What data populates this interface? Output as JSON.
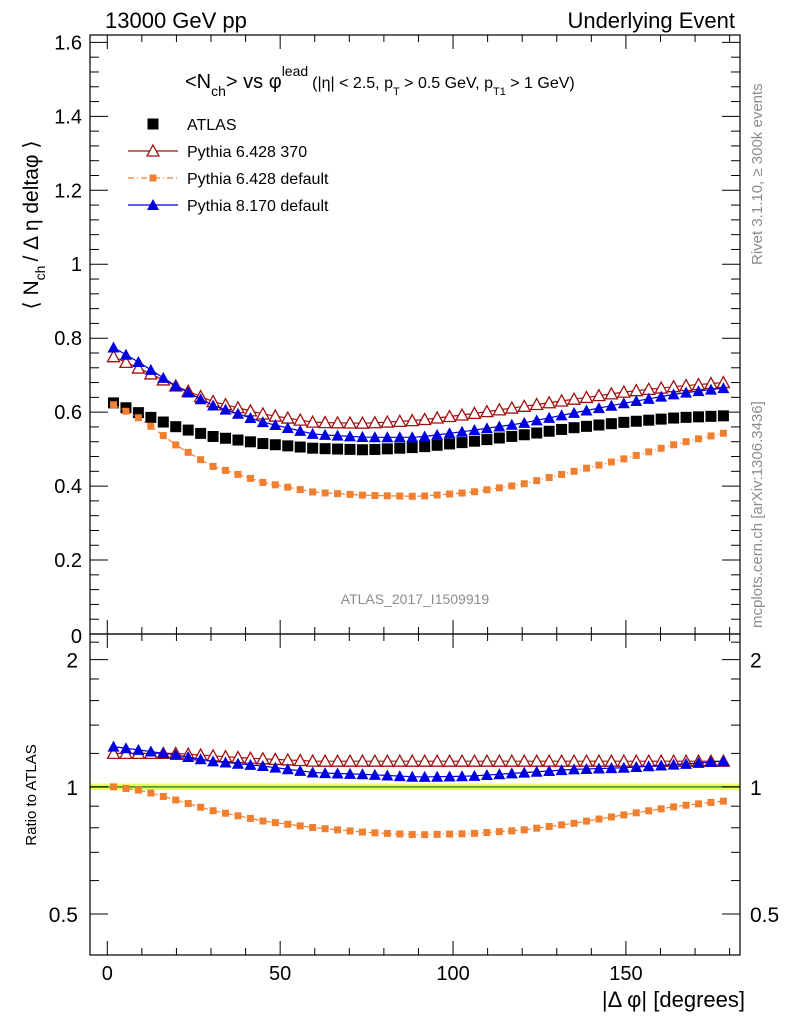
{
  "header": {
    "left": "13000 GeV pp",
    "right": "Underlying Event"
  },
  "side_labels": {
    "rivet": "Rivet 3.1.10, ≥ 300k events",
    "mcplots": "mcplots.cern.ch [arXiv:1306.3436]"
  },
  "colors": {
    "atlas": "#000000",
    "p6_370": "#a01010",
    "p6_default": "#f08030",
    "p8_default": "#0000e0",
    "band_yellow": "#eaff60",
    "band_green": "#2f8f2f"
  },
  "chart_data": {
    "type": "scatter",
    "title_parts": {
      "main": "<N",
      "main_sub": "ch",
      "main_after": "> vs φ",
      "main_sup": "lead",
      "cuts_1": "(|η| < 2.5, p",
      "cuts_1_sub": "T",
      "cuts_2": " > 0.5 GeV, p",
      "cuts_2_sub": "T1",
      "cuts_3": " > 1 GeV)"
    },
    "ylabel_parts": {
      "a": "⟨ N",
      "sub": "ch",
      "b": "/ Δ η deltaφ ⟩"
    },
    "xlabel": "|Δ φ| [degrees]",
    "ratio_ylabel": "Ratio to ATLAS",
    "analysis_id": "ATLAS_2017_I1509919",
    "xlim": [
      -5,
      183
    ],
    "ylim": [
      0,
      1.62
    ],
    "ratio_ylim": [
      0.4,
      2.3
    ],
    "x_ticks": [
      0,
      50,
      100,
      150
    ],
    "y_ticks": [
      0.2,
      0.4,
      0.6,
      0.8,
      1,
      1.2,
      1.4,
      1.6
    ],
    "ratio_y_ticks": [
      0.5,
      1,
      2
    ],
    "y_tick_labels": [
      "0.2",
      "0.4",
      "0.6",
      "0.8",
      "1",
      "1.2",
      "1.4",
      "1.6"
    ],
    "x_tick_labels": [
      "0",
      "50",
      "100",
      "150"
    ],
    "ratio_y_tick_labels": [
      "0.5",
      "1",
      "2"
    ],
    "bottom_tick_label": "0",
    "legend_placement": "top-left",
    "series": [
      {
        "name": "ATLAS",
        "marker": "square-filled",
        "knots": [
          [
            1.8,
            0.625
          ],
          [
            10,
            0.595
          ],
          [
            20,
            0.56
          ],
          [
            30,
            0.535
          ],
          [
            45,
            0.515
          ],
          [
            60,
            0.502
          ],
          [
            75,
            0.498
          ],
          [
            90,
            0.505
          ],
          [
            105,
            0.52
          ],
          [
            120,
            0.538
          ],
          [
            135,
            0.558
          ],
          [
            150,
            0.573
          ],
          [
            165,
            0.585
          ],
          [
            178,
            0.59
          ]
        ]
      },
      {
        "name": "Pythia 6.428 370",
        "marker": "triangle-open",
        "knots": [
          [
            1.8,
            0.75
          ],
          [
            10,
            0.715
          ],
          [
            20,
            0.67
          ],
          [
            30,
            0.63
          ],
          [
            45,
            0.595
          ],
          [
            60,
            0.572
          ],
          [
            75,
            0.57
          ],
          [
            90,
            0.578
          ],
          [
            105,
            0.595
          ],
          [
            120,
            0.615
          ],
          [
            135,
            0.635
          ],
          [
            150,
            0.655
          ],
          [
            165,
            0.67
          ],
          [
            178,
            0.68
          ]
        ]
      },
      {
        "name": "Pythia 6.428 default",
        "marker": "square-small",
        "knots": [
          [
            1.8,
            0.62
          ],
          [
            10,
            0.58
          ],
          [
            20,
            0.51
          ],
          [
            30,
            0.455
          ],
          [
            45,
            0.41
          ],
          [
            60,
            0.383
          ],
          [
            75,
            0.375
          ],
          [
            90,
            0.372
          ],
          [
            105,
            0.383
          ],
          [
            120,
            0.405
          ],
          [
            135,
            0.44
          ],
          [
            150,
            0.475
          ],
          [
            165,
            0.515
          ],
          [
            178,
            0.543
          ]
        ]
      },
      {
        "name": "Pythia 8.170 default",
        "marker": "triangle-filled",
        "knots": [
          [
            1.8,
            0.775
          ],
          [
            10,
            0.73
          ],
          [
            20,
            0.67
          ],
          [
            30,
            0.62
          ],
          [
            45,
            0.573
          ],
          [
            60,
            0.54
          ],
          [
            75,
            0.532
          ],
          [
            90,
            0.532
          ],
          [
            105,
            0.55
          ],
          [
            120,
            0.57
          ],
          [
            135,
            0.598
          ],
          [
            150,
            0.625
          ],
          [
            165,
            0.65
          ],
          [
            178,
            0.665
          ]
        ]
      }
    ],
    "ratio_series": [
      {
        "name": "Pythia 6.428 370",
        "knots": [
          [
            1.8,
            1.2
          ],
          [
            20,
            1.2
          ],
          [
            40,
            1.17
          ],
          [
            60,
            1.15
          ],
          [
            80,
            1.15
          ],
          [
            100,
            1.15
          ],
          [
            120,
            1.15
          ],
          [
            140,
            1.15
          ],
          [
            160,
            1.15
          ],
          [
            178,
            1.15
          ]
        ]
      },
      {
        "name": "Pythia 6.428 default",
        "knots": [
          [
            1.8,
            1.0
          ],
          [
            10,
            0.98
          ],
          [
            20,
            0.93
          ],
          [
            30,
            0.88
          ],
          [
            45,
            0.83
          ],
          [
            60,
            0.8
          ],
          [
            75,
            0.78
          ],
          [
            90,
            0.77
          ],
          [
            105,
            0.775
          ],
          [
            120,
            0.79
          ],
          [
            135,
            0.82
          ],
          [
            150,
            0.86
          ],
          [
            165,
            0.9
          ],
          [
            178,
            0.925
          ]
        ]
      },
      {
        "name": "Pythia 8.170 default",
        "knots": [
          [
            1.8,
            1.245
          ],
          [
            10,
            1.22
          ],
          [
            20,
            1.19
          ],
          [
            30,
            1.15
          ],
          [
            45,
            1.12
          ],
          [
            60,
            1.08
          ],
          [
            75,
            1.07
          ],
          [
            90,
            1.055
          ],
          [
            105,
            1.06
          ],
          [
            120,
            1.08
          ],
          [
            135,
            1.1
          ],
          [
            150,
            1.11
          ],
          [
            165,
            1.13
          ],
          [
            178,
            1.15
          ]
        ]
      }
    ]
  }
}
